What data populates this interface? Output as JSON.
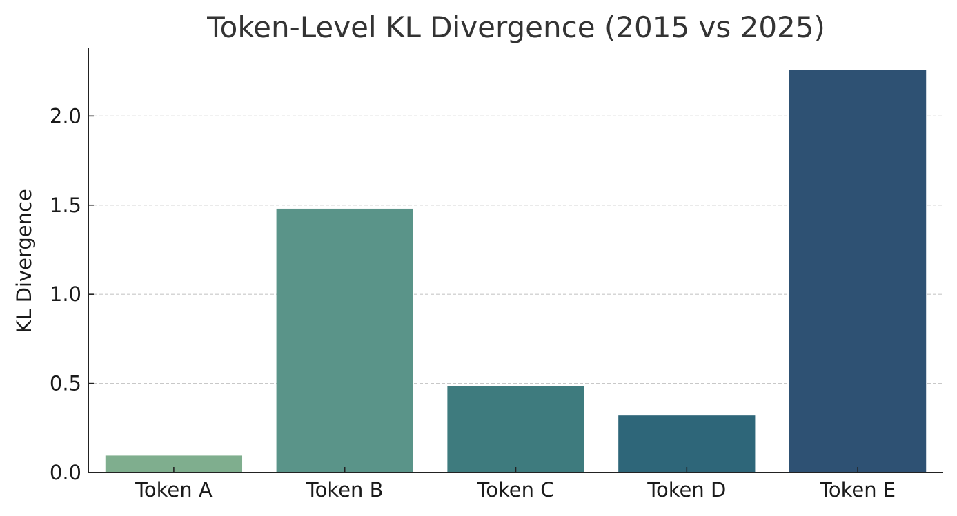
{
  "chart_data": {
    "type": "bar",
    "title": "Token-Level KL Divergence (2015 vs 2025)",
    "xlabel": "",
    "ylabel": "KL Divergence",
    "categories": [
      "Token A",
      "Token B",
      "Token C",
      "Token D",
      "Token E"
    ],
    "values": [
      0.095,
      1.48,
      0.485,
      0.32,
      2.26
    ],
    "colors": [
      "#7fae8e",
      "#5a9489",
      "#3e7b7e",
      "#2e6679",
      "#2e5173"
    ],
    "ylim": [
      0,
      2.38
    ],
    "yticks": [
      0.0,
      0.5,
      1.0,
      1.5,
      2.0
    ],
    "ytick_labels": [
      "0.0",
      "0.5",
      "1.0",
      "1.5",
      "2.0"
    ],
    "grid": {
      "y": true,
      "x": false,
      "style": "dashed",
      "color": "#c8c8c8"
    },
    "legend": null
  }
}
